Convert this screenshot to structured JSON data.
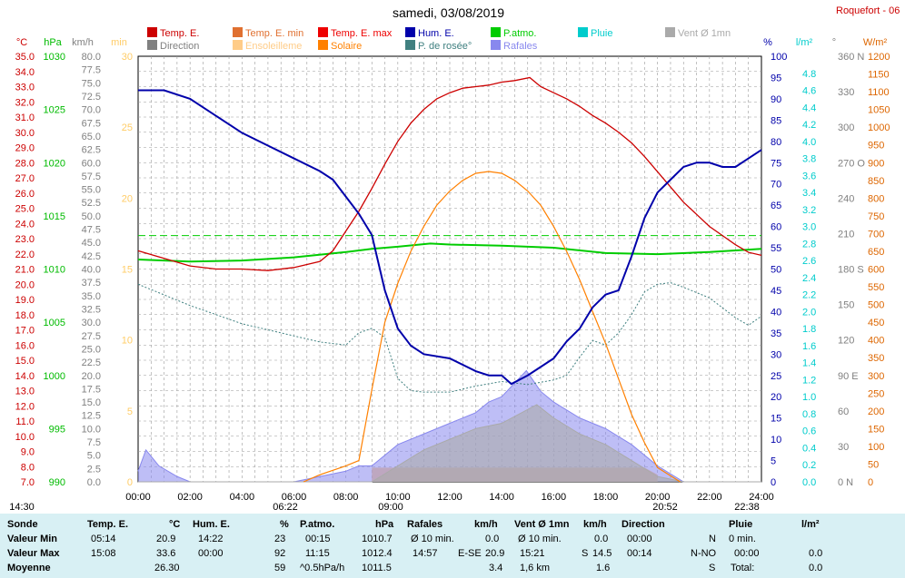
{
  "title": "samedi, 03/08/2019",
  "station": "Roquefort - 06",
  "legend": [
    {
      "label": "Temp. E.",
      "color": "#cc0000"
    },
    {
      "label": "Temp. E. min",
      "color": "#e07030"
    },
    {
      "label": "Temp. E. max",
      "color": "#ee0000"
    },
    {
      "label": "Hum. E.",
      "color": "#0000aa"
    },
    {
      "label": "P.atmo.",
      "color": "#00cc00"
    },
    {
      "label": "Pluie",
      "color": "#00cccc"
    },
    {
      "label": "Vent Ø 1mn",
      "color": "#aaaaaa"
    },
    {
      "label": "Direction",
      "color": "#808080"
    },
    {
      "label": "Ensoleilleme",
      "color": "#ffcc88"
    },
    {
      "label": "Solaire",
      "color": "#ff8000"
    },
    {
      "label": "P. de rosée°",
      "color": "#408080"
    },
    {
      "label": "Rafales",
      "color": "#8888ee"
    }
  ],
  "axes": {
    "temp": {
      "unit": "°C",
      "color": "#cc0000",
      "ticks": [
        "35.0",
        "34.0",
        "33.0",
        "32.0",
        "31.0",
        "30.0",
        "29.0",
        "28.0",
        "27.0",
        "26.0",
        "25.0",
        "24.0",
        "23.0",
        "22.0",
        "21.0",
        "20.0",
        "19.0",
        "18.0",
        "17.0",
        "16.0",
        "15.0",
        "14.0",
        "13.0",
        "12.0",
        "11.0",
        "10.0",
        "9.0",
        "8.0",
        "7.0"
      ]
    },
    "press": {
      "unit": "hPa",
      "color": "#00bb00",
      "ticks": [
        "1030",
        "1025",
        "1020",
        "1015",
        "1010",
        "1005",
        "1000",
        "995",
        "990"
      ]
    },
    "wind": {
      "unit": "km/h",
      "color": "#808080",
      "ticks": [
        "80.0",
        "77.5",
        "75.0",
        "72.5",
        "70.0",
        "67.5",
        "65.0",
        "62.5",
        "60.0",
        "57.5",
        "55.0",
        "52.5",
        "50.0",
        "47.5",
        "45.0",
        "42.5",
        "40.0",
        "37.5",
        "35.0",
        "32.5",
        "30.0",
        "27.5",
        "25.0",
        "22.5",
        "20.0",
        "17.5",
        "15.0",
        "12.5",
        "10.0",
        "7.5",
        "5.0",
        "2.5",
        "0.0"
      ]
    },
    "sun": {
      "unit": "min",
      "color": "#ffcc66",
      "ticks": [
        "30",
        "25",
        "20",
        "15",
        "10",
        "5",
        "0"
      ]
    },
    "hum": {
      "unit": "%",
      "color": "#0000aa",
      "ticks": [
        "100",
        "95",
        "90",
        "85",
        "80",
        "75",
        "70",
        "65",
        "60",
        "55",
        "50",
        "45",
        "40",
        "35",
        "30",
        "25",
        "20",
        "15",
        "10",
        "5",
        "0"
      ]
    },
    "rain": {
      "unit": "l/m²",
      "color": "#00cccc",
      "ticks": [
        "4.8",
        "4.6",
        "4.4",
        "4.2",
        "4.0",
        "3.8",
        "3.6",
        "3.4",
        "3.2",
        "3.0",
        "2.8",
        "2.6",
        "2.4",
        "2.2",
        "2.0",
        "1.8",
        "1.6",
        "1.4",
        "1.2",
        "1.0",
        "0.8",
        "0.6",
        "0.4",
        "0.2",
        "0.0"
      ]
    },
    "dir": {
      "unit": "°",
      "color": "#808080",
      "ticks": [
        "360 N",
        "330",
        "300",
        "270 O",
        "240",
        "210",
        "180 S",
        "150",
        "120",
        "90 E",
        "60",
        "30",
        "0 N"
      ]
    },
    "solar": {
      "unit": "W/m²",
      "color": "#dd6600",
      "ticks": [
        "1200",
        "1150",
        "1100",
        "1050",
        "1000",
        "950",
        "900",
        "850",
        "800",
        "750",
        "700",
        "650",
        "600",
        "550",
        "500",
        "450",
        "400",
        "350",
        "300",
        "250",
        "200",
        "150",
        "100",
        "50",
        "0"
      ]
    },
    "time": {
      "ticks": [
        "00:00",
        "02:00",
        "04:00",
        "06:00",
        "08:00",
        "10:00",
        "12:00",
        "14:00",
        "16:00",
        "18:00",
        "20:00",
        "22:00",
        "24:00"
      ]
    }
  },
  "markers": {
    "moonrise": "14:30",
    "sunrise": "06:22",
    "solar_start": "09:00",
    "sunset": "20:52",
    "moonset": "22:38"
  },
  "chart_data": {
    "type": "line",
    "x_range": [
      0,
      24
    ],
    "series": [
      {
        "name": "Temp. E.",
        "unit": "°C",
        "points": [
          [
            0,
            22.2
          ],
          [
            1,
            21.7
          ],
          [
            2,
            21.2
          ],
          [
            3,
            21.0
          ],
          [
            4,
            21.0
          ],
          [
            5,
            20.9
          ],
          [
            6,
            21.1
          ],
          [
            7,
            21.5
          ],
          [
            7.5,
            22.2
          ],
          [
            8,
            23.5
          ],
          [
            8.5,
            24.8
          ],
          [
            9,
            26.3
          ],
          [
            9.5,
            27.9
          ],
          [
            10,
            29.4
          ],
          [
            10.5,
            30.6
          ],
          [
            11,
            31.5
          ],
          [
            11.5,
            32.2
          ],
          [
            12,
            32.6
          ],
          [
            12.5,
            32.9
          ],
          [
            13,
            33.0
          ],
          [
            13.5,
            33.1
          ],
          [
            14,
            33.3
          ],
          [
            14.5,
            33.4
          ],
          [
            15.08,
            33.6
          ],
          [
            15.5,
            33.0
          ],
          [
            16,
            32.6
          ],
          [
            16.5,
            32.2
          ],
          [
            17,
            31.7
          ],
          [
            17.5,
            31.1
          ],
          [
            18,
            30.6
          ],
          [
            18.5,
            30.0
          ],
          [
            19,
            29.3
          ],
          [
            19.5,
            28.4
          ],
          [
            20,
            27.4
          ],
          [
            20.5,
            26.4
          ],
          [
            21,
            25.4
          ],
          [
            21.5,
            24.6
          ],
          [
            22,
            23.8
          ],
          [
            22.5,
            23.2
          ],
          [
            23,
            22.6
          ],
          [
            23.5,
            22.1
          ],
          [
            24,
            21.9
          ]
        ]
      },
      {
        "name": "Hum. E.",
        "unit": "%",
        "points": [
          [
            0,
            92
          ],
          [
            1,
            92
          ],
          [
            2,
            90
          ],
          [
            3,
            86
          ],
          [
            3.5,
            84
          ],
          [
            4,
            82
          ],
          [
            5,
            79
          ],
          [
            6,
            76
          ],
          [
            7,
            73
          ],
          [
            7.5,
            71
          ],
          [
            8,
            67
          ],
          [
            8.5,
            63
          ],
          [
            9,
            58
          ],
          [
            9.5,
            45
          ],
          [
            10,
            36
          ],
          [
            10.5,
            32
          ],
          [
            11,
            30
          ],
          [
            12,
            29
          ],
          [
            13,
            26
          ],
          [
            13.5,
            25
          ],
          [
            14,
            25
          ],
          [
            14.37,
            23
          ],
          [
            15,
            25
          ],
          [
            15.5,
            27
          ],
          [
            16,
            29
          ],
          [
            16.5,
            33
          ],
          [
            17,
            36
          ],
          [
            17.5,
            41
          ],
          [
            18,
            44
          ],
          [
            18.5,
            45
          ],
          [
            19,
            53
          ],
          [
            19.5,
            62
          ],
          [
            20,
            68
          ],
          [
            20.5,
            71
          ],
          [
            21,
            74
          ],
          [
            21.5,
            75
          ],
          [
            22,
            75
          ],
          [
            22.5,
            74
          ],
          [
            23,
            74
          ],
          [
            23.5,
            76
          ],
          [
            24,
            78
          ]
        ]
      },
      {
        "name": "P.atmo.",
        "unit": "hPa",
        "points": [
          [
            0,
            1010.9
          ],
          [
            2,
            1010.7
          ],
          [
            4,
            1010.8
          ],
          [
            6,
            1011.1
          ],
          [
            8,
            1011.6
          ],
          [
            9,
            1011.9
          ],
          [
            10,
            1012.1
          ],
          [
            11.25,
            1012.4
          ],
          [
            12,
            1012.3
          ],
          [
            14,
            1012.2
          ],
          [
            16,
            1012.0
          ],
          [
            18,
            1011.5
          ],
          [
            20,
            1011.4
          ],
          [
            22,
            1011.6
          ],
          [
            24,
            1011.9
          ]
        ]
      },
      {
        "name": "P. de rosée°",
        "unit": "°C",
        "points": [
          [
            0,
            20.0
          ],
          [
            1,
            19.3
          ],
          [
            2,
            18.6
          ],
          [
            3,
            18.0
          ],
          [
            4,
            17.4
          ],
          [
            5,
            17.0
          ],
          [
            6,
            16.6
          ],
          [
            7,
            16.2
          ],
          [
            8,
            16.0
          ],
          [
            8.5,
            16.8
          ],
          [
            9,
            17.1
          ],
          [
            9.5,
            16.5
          ],
          [
            10,
            13.8
          ],
          [
            10.5,
            13.0
          ],
          [
            11,
            12.9
          ],
          [
            12,
            12.9
          ],
          [
            13,
            13.3
          ],
          [
            14,
            13.6
          ],
          [
            15,
            13.4
          ],
          [
            16,
            13.7
          ],
          [
            16.5,
            14.0
          ],
          [
            17,
            15.2
          ],
          [
            17.5,
            16.3
          ],
          [
            18,
            16.0
          ],
          [
            18.5,
            16.8
          ],
          [
            19,
            18.0
          ],
          [
            19.5,
            19.5
          ],
          [
            20,
            20.0
          ],
          [
            20.5,
            20.1
          ],
          [
            21,
            19.8
          ],
          [
            22,
            19.1
          ],
          [
            23,
            17.8
          ],
          [
            23.5,
            17.3
          ],
          [
            24,
            17.9
          ]
        ]
      },
      {
        "name": "Solaire",
        "unit": "W/m²",
        "points": [
          [
            6.37,
            0
          ],
          [
            7,
            20
          ],
          [
            8,
            45
          ],
          [
            8.5,
            60
          ],
          [
            9,
            260
          ],
          [
            9.5,
            450
          ],
          [
            10,
            560
          ],
          [
            10.5,
            650
          ],
          [
            11,
            720
          ],
          [
            11.5,
            780
          ],
          [
            12,
            820
          ],
          [
            12.5,
            850
          ],
          [
            13,
            870
          ],
          [
            13.5,
            875
          ],
          [
            14,
            870
          ],
          [
            14.5,
            850
          ],
          [
            15,
            820
          ],
          [
            15.5,
            780
          ],
          [
            16,
            720
          ],
          [
            16.5,
            650
          ],
          [
            17,
            570
          ],
          [
            17.5,
            480
          ],
          [
            18,
            390
          ],
          [
            18.5,
            290
          ],
          [
            19,
            190
          ],
          [
            19.5,
            110
          ],
          [
            20,
            40
          ],
          [
            20.87,
            0
          ]
        ]
      },
      {
        "name": "Rafales",
        "unit": "km/h",
        "points": [
          [
            0,
            2
          ],
          [
            0.3,
            6
          ],
          [
            0.8,
            3
          ],
          [
            1.5,
            1
          ],
          [
            2,
            0
          ],
          [
            6,
            0
          ],
          [
            7,
            1
          ],
          [
            8,
            2
          ],
          [
            8.5,
            3
          ],
          [
            9,
            3
          ],
          [
            10,
            7
          ],
          [
            11,
            9
          ],
          [
            12,
            11
          ],
          [
            13,
            13
          ],
          [
            13.5,
            15
          ],
          [
            14,
            16
          ],
          [
            14.95,
            20.9
          ],
          [
            15.5,
            17
          ],
          [
            16,
            15
          ],
          [
            17,
            12
          ],
          [
            18,
            10
          ],
          [
            19,
            7
          ],
          [
            20,
            3
          ],
          [
            21,
            0
          ],
          [
            24,
            0
          ]
        ]
      },
      {
        "name": "Vent Ø 1mn",
        "unit": "km/h",
        "points": [
          [
            0,
            0
          ],
          [
            9,
            0
          ],
          [
            10,
            3
          ],
          [
            11,
            6
          ],
          [
            12,
            8
          ],
          [
            13,
            10
          ],
          [
            14,
            11
          ],
          [
            15.35,
            14.5
          ],
          [
            16,
            12
          ],
          [
            17,
            9
          ],
          [
            18,
            7
          ],
          [
            19,
            4
          ],
          [
            20,
            1
          ],
          [
            21,
            0
          ],
          [
            24,
            0
          ]
        ]
      },
      {
        "name": "Ensoleilleme",
        "unit": "min",
        "points": [
          [
            9,
            1
          ],
          [
            10,
            1
          ],
          [
            12,
            1
          ],
          [
            14,
            1
          ],
          [
            16,
            1
          ],
          [
            18,
            1
          ],
          [
            19.5,
            1
          ],
          [
            20,
            0.5
          ]
        ]
      },
      {
        "name": "Temp. E. max",
        "unit": "°C",
        "points": [
          [
            0,
            23.2
          ],
          [
            24,
            23.2
          ]
        ]
      }
    ]
  },
  "summary": {
    "headers": [
      "Sonde",
      "Temp. E.",
      "°C",
      "Hum. E.",
      "%",
      "P.atmo.",
      "hPa",
      "Rafales",
      "km/h",
      "Vent Ø 1mn",
      "km/h",
      "Direction",
      "Pluie",
      "l/m²"
    ],
    "min": {
      "label": "Valeur Min",
      "temp_time": "05:14",
      "temp": "20.9",
      "hum_time": "14:22",
      "hum": "23",
      "press_time": "00:15",
      "press": "1010.7",
      "gust_dir": "Ø 10 min.",
      "gust": "0.0",
      "wind_dir": "Ø 10 min.",
      "wind": "0.0",
      "dir_time": "00:00",
      "dir": "N",
      "rain_time": "0 min.",
      "rain": ""
    },
    "max": {
      "label": "Valeur Max",
      "temp_time": "15:08",
      "temp": "33.6",
      "hum_time": "00:00",
      "hum": "92",
      "press_time": "11:15",
      "press": "1012.4",
      "gust_time": "14:57",
      "gust_dir": "E-SE",
      "gust": "20.9",
      "wind_time": "15:21",
      "wind_dir": "S",
      "wind": "14.5",
      "dir_time": "00:14",
      "dir": "N-NO",
      "rain_time": "00:00",
      "rain": "0.0"
    },
    "avg": {
      "label": "Moyenne",
      "temp": "26.30",
      "hum": "59",
      "press_time": "^0.5hPa/h",
      "press": "1011.5",
      "gust": "3.4",
      "wind_time": "1,6 km",
      "wind": "1.6",
      "dir": "S",
      "rain_time": "Total:",
      "rain": "0.0"
    }
  }
}
